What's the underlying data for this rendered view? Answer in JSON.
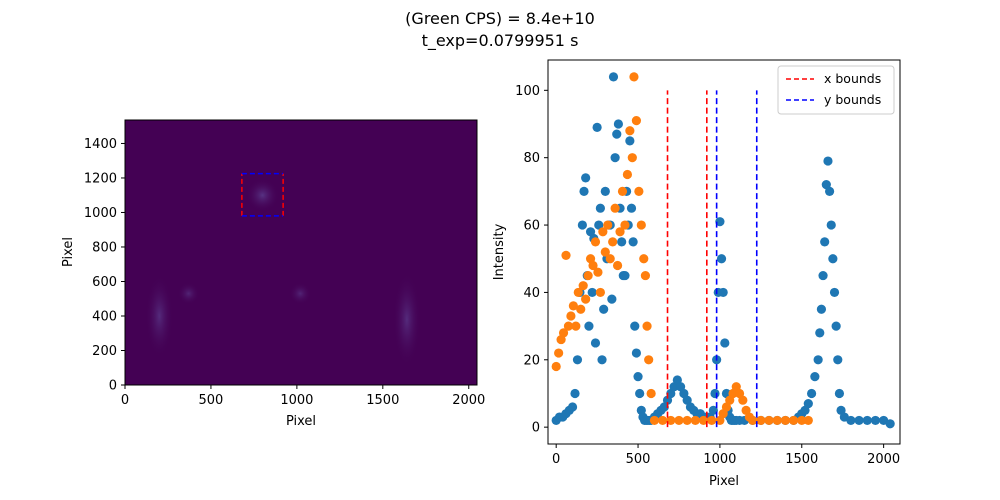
{
  "figure": {
    "title_lines": [
      "(Green CPS) = 8.4e+10",
      "t_exp=0.0799951 s"
    ]
  },
  "colors": {
    "image_background": "#440154",
    "image_glow": "#5a3a8a",
    "x_bounds": "#ff0000",
    "y_bounds": "#0000ff",
    "series_blue": "#1f77b4",
    "series_orange": "#ff7f0e"
  },
  "chart_data": [
    {
      "type": "heatmap",
      "colormap": "viridis",
      "xlabel": "Pixel",
      "ylabel": "Pixel",
      "xlim": [
        0,
        2048
      ],
      "ylim": [
        0,
        1536
      ],
      "xticks": [
        0,
        500,
        1000,
        1500,
        2000
      ],
      "yticks": [
        0,
        200,
        400,
        600,
        800,
        1000,
        1200,
        1400
      ],
      "roi": {
        "x0": 680,
        "x1": 920,
        "y0": 980,
        "y1": 1225
      },
      "bright_regions": [
        {
          "x": 800,
          "y": 1100,
          "rx": 60,
          "ry": 60,
          "level": 0.35
        },
        {
          "x": 200,
          "y": 400,
          "rx": 50,
          "ry": 150,
          "level": 0.3
        },
        {
          "x": 370,
          "y": 530,
          "rx": 40,
          "ry": 40,
          "level": 0.25
        },
        {
          "x": 1020,
          "y": 530,
          "rx": 40,
          "ry": 40,
          "level": 0.25
        },
        {
          "x": 1640,
          "y": 380,
          "rx": 50,
          "ry": 170,
          "level": 0.3
        }
      ]
    },
    {
      "type": "scatter",
      "xlabel": "Pixel",
      "ylabel": "Intensity",
      "xlim": [
        -50,
        2100
      ],
      "ylim": [
        -5,
        109
      ],
      "xticks": [
        0,
        500,
        1000,
        1500,
        2000
      ],
      "yticks": [
        0,
        20,
        40,
        60,
        80,
        100
      ],
      "legend_position": "top-right",
      "vlines": [
        {
          "name": "x bounds",
          "color": "#ff0000",
          "x": [
            680,
            920
          ],
          "y": [
            0,
            100
          ]
        },
        {
          "name": "y bounds",
          "color": "#0000ff",
          "x": [
            980,
            1225
          ],
          "y": [
            0,
            100
          ]
        }
      ],
      "series": [
        {
          "color": "#1f77b4",
          "x": [
            0,
            20,
            40,
            60,
            80,
            100,
            115,
            130,
            145,
            160,
            170,
            180,
            190,
            200,
            210,
            220,
            230,
            240,
            250,
            260,
            270,
            280,
            290,
            300,
            310,
            320,
            330,
            340,
            350,
            360,
            370,
            380,
            390,
            400,
            410,
            420,
            430,
            440,
            450,
            460,
            470,
            480,
            490,
            500,
            510,
            520,
            530,
            540,
            550,
            560,
            570,
            580,
            600,
            620,
            640,
            660,
            680,
            700,
            720,
            740,
            760,
            780,
            800,
            820,
            840,
            860,
            880,
            900,
            920,
            940,
            960,
            970,
            980,
            990,
            1000,
            1010,
            1020,
            1030,
            1040,
            1050,
            1060,
            1070,
            1080,
            1090,
            1100,
            1120,
            1150,
            1200,
            1250,
            1300,
            1350,
            1400,
            1450,
            1480,
            1500,
            1520,
            1540,
            1560,
            1580,
            1600,
            1610,
            1620,
            1630,
            1640,
            1650,
            1660,
            1670,
            1680,
            1690,
            1700,
            1710,
            1720,
            1730,
            1740,
            1760,
            1800,
            1850,
            1900,
            1950,
            2000,
            2040
          ],
          "y": [
            2,
            3,
            3,
            4,
            5,
            6,
            10,
            20,
            40,
            60,
            70,
            74,
            45,
            30,
            58,
            40,
            56,
            25,
            89,
            60,
            65,
            20,
            35,
            70,
            50,
            60,
            60,
            38,
            104,
            80,
            87,
            90,
            65,
            55,
            45,
            45,
            70,
            60,
            85,
            65,
            55,
            30,
            22,
            15,
            10,
            5,
            3,
            2,
            2,
            2,
            2,
            2,
            3,
            4,
            5,
            6,
            8,
            10,
            12,
            14,
            12,
            10,
            8,
            6,
            5,
            4,
            4,
            3,
            3,
            3,
            5,
            10,
            20,
            40,
            61,
            50,
            40,
            25,
            10,
            5,
            3,
            2,
            2,
            2,
            2,
            2,
            2,
            2,
            2,
            2,
            2,
            2,
            2,
            3,
            4,
            5,
            7,
            10,
            15,
            20,
            28,
            35,
            45,
            55,
            72,
            79,
            70,
            60,
            50,
            40,
            30,
            20,
            10,
            5,
            3,
            2,
            2,
            2,
            2,
            2,
            1
          ]
        },
        {
          "color": "#ff7f0e",
          "x": [
            0,
            15,
            30,
            45,
            60,
            75,
            90,
            105,
            120,
            135,
            150,
            165,
            180,
            195,
            210,
            225,
            240,
            255,
            270,
            285,
            300,
            315,
            330,
            345,
            360,
            375,
            390,
            405,
            420,
            435,
            450,
            465,
            475,
            490,
            505,
            520,
            535,
            545,
            555,
            565,
            580,
            600,
            650,
            700,
            750,
            800,
            850,
            900,
            950,
            1000,
            1020,
            1040,
            1060,
            1080,
            1100,
            1120,
            1140,
            1160,
            1180,
            1200,
            1250,
            1300,
            1350,
            1400,
            1450,
            1500,
            1540
          ],
          "y": [
            18,
            22,
            26,
            28,
            51,
            30,
            33,
            36,
            30,
            40,
            35,
            42,
            38,
            45,
            50,
            48,
            55,
            46,
            40,
            58,
            52,
            60,
            50,
            55,
            65,
            48,
            58,
            70,
            60,
            75,
            88,
            80,
            104,
            91,
            70,
            60,
            50,
            45,
            30,
            20,
            10,
            2,
            2,
            2,
            2,
            2,
            2,
            2,
            2,
            2,
            4,
            6,
            8,
            10,
            12,
            10,
            8,
            5,
            3,
            2,
            2,
            2,
            2,
            2,
            2,
            2,
            2
          ]
        }
      ]
    }
  ]
}
